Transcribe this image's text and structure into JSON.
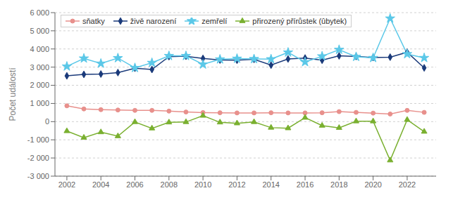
{
  "chart_data": {
    "type": "line",
    "x": [
      2002,
      2003,
      2004,
      2005,
      2006,
      2007,
      2008,
      2009,
      2010,
      2011,
      2012,
      2013,
      2014,
      2015,
      2016,
      2017,
      2018,
      2019,
      2020,
      2021,
      2022,
      2023
    ],
    "series": [
      {
        "name": "sňatky",
        "color": "#e8908c",
        "marker": "circle",
        "values": [
          870,
          700,
          660,
          640,
          620,
          620,
          580,
          530,
          500,
          490,
          480,
          480,
          490,
          480,
          480,
          490,
          550,
          510,
          470,
          420,
          620,
          510
        ]
      },
      {
        "name": "živě narození",
        "color": "#1a3a7a",
        "marker": "diamond",
        "values": [
          2520,
          2600,
          2620,
          2700,
          2940,
          2870,
          3580,
          3600,
          3480,
          3390,
          3380,
          3430,
          3110,
          3450,
          3500,
          3380,
          3620,
          3590,
          3530,
          3550,
          3820,
          2960
        ]
      },
      {
        "name": "zemřelí",
        "color": "#5bc8e8",
        "marker": "star",
        "values": [
          3040,
          3480,
          3200,
          3500,
          2960,
          3240,
          3620,
          3620,
          3150,
          3430,
          3470,
          3450,
          3440,
          3810,
          3280,
          3600,
          3960,
          3570,
          3510,
          5680,
          3720,
          3510
        ]
      },
      {
        "name": "přirozený přírůstek (ûbytek)",
        "color": "#7ab030",
        "marker": "triangle",
        "values": [
          -520,
          -880,
          -580,
          -800,
          -20,
          -370,
          -40,
          -20,
          330,
          -40,
          -90,
          -20,
          -330,
          -360,
          220,
          -220,
          -340,
          20,
          20,
          -2130,
          100,
          -550
        ]
      }
    ],
    "y_label": "Počet událostí",
    "xlim": [
      2001.3,
      2023.7
    ],
    "xticks": [
      2002,
      2004,
      2006,
      2008,
      2010,
      2012,
      2014,
      2016,
      2018,
      2020,
      2022
    ],
    "ylim": [
      -3000,
      6000
    ],
    "yticks": [
      {
        "value": -3000,
        "label": "-3 000"
      },
      {
        "value": -2000,
        "label": "-2 000"
      },
      {
        "value": -1000,
        "label": "-1 000"
      },
      0,
      {
        "value": 1000,
        "label": "1 000"
      },
      {
        "value": 2000,
        "label": "2 000"
      },
      {
        "value": 3000,
        "label": "3 000"
      },
      {
        "value": 4000,
        "label": "4 000"
      },
      {
        "value": 5000,
        "label": "5 000"
      },
      {
        "value": 6000,
        "label": "6 000"
      }
    ],
    "grid": true,
    "legend": "upper left"
  }
}
